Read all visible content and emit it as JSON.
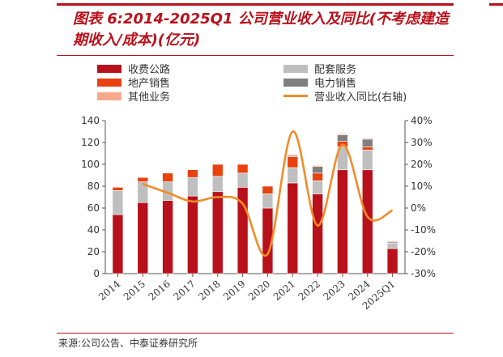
{
  "figure": {
    "title": "图表 6:2014-2025Q1 公司营业收入及同比(不考虑建造期收入/成本)(亿元)",
    "source": "来源:公司公告、中泰证券研究所"
  },
  "colors": {
    "toll": "#b8111b",
    "supporting": "#bfbfbf",
    "real_estate": "#e8420f",
    "power": "#7f7f7f",
    "other": "#f7a98c",
    "yoy": "#f28c28",
    "accent": "#b8111b"
  },
  "chart_data": {
    "type": "bar",
    "stacked": true,
    "categories": [
      "2014",
      "2015",
      "2016",
      "2017",
      "2018",
      "2019",
      "2020",
      "2021",
      "2022",
      "2023",
      "2024",
      "2025Q1"
    ],
    "series": [
      {
        "name": "收费公路",
        "values": [
          54,
          65,
          67,
          71,
          75,
          79,
          60,
          83,
          73,
          95,
          95,
          23
        ]
      },
      {
        "name": "配套服务",
        "values": [
          22,
          19,
          17,
          17,
          14,
          13,
          13,
          14,
          12,
          21,
          18,
          5
        ]
      },
      {
        "name": "地产销售",
        "values": [
          3,
          4,
          8,
          7,
          11,
          8,
          7,
          10,
          7,
          5,
          3,
          0
        ]
      },
      {
        "name": "电力销售",
        "values": [
          0,
          0,
          0,
          0,
          0,
          0,
          0,
          1,
          6,
          6,
          7,
          1
        ]
      },
      {
        "name": "其他业务",
        "values": [
          0,
          0,
          0,
          0,
          0,
          0,
          0,
          1,
          1,
          1,
          1,
          1
        ]
      }
    ],
    "line_series": {
      "name": "营业收入同比(右轴)",
      "values": [
        null,
        11,
        7,
        3,
        5,
        2,
        -21,
        35,
        -8,
        29,
        -4,
        -1
      ]
    },
    "ylim": [
      0,
      140
    ],
    "y_ticks": [
      "0",
      "20",
      "40",
      "60",
      "80",
      "100",
      "120",
      "140"
    ],
    "y2lim": [
      -30,
      40
    ],
    "y2_ticks": [
      "-30%",
      "-20%",
      "-10%",
      "0%",
      "10%",
      "20%",
      "30%",
      "40%"
    ],
    "legend": {
      "position": "top",
      "columns": 2
    }
  }
}
